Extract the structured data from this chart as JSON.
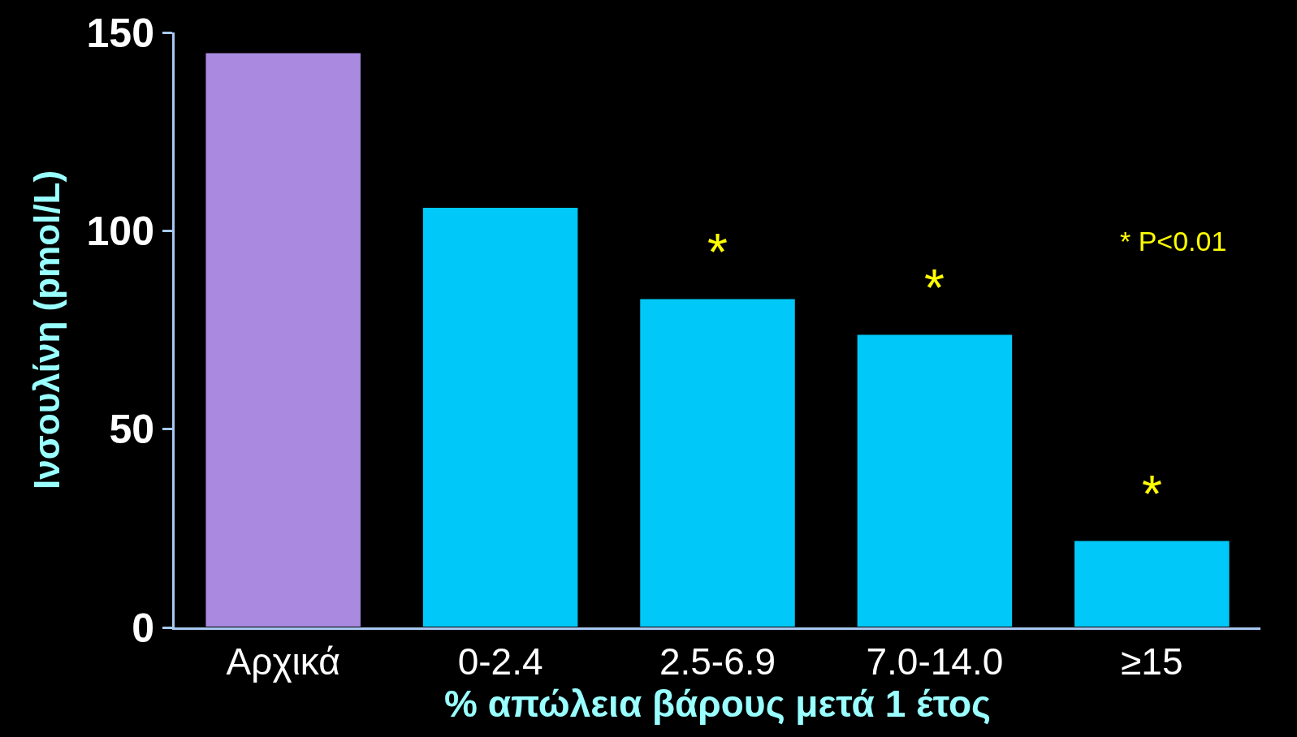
{
  "chart_data": {
    "type": "bar",
    "xlabel": "% απώλεια βάρους μετά 1 έτος",
    "ylabel": "Ινσουλίνη (pmol/L)",
    "categories": [
      "Αρχικά",
      "0-2.4",
      "2.5-6.9",
      "7.0-14.0",
      "≥15"
    ],
    "values": [
      145,
      106,
      83,
      74,
      22
    ],
    "colors": [
      "#a98ae0",
      "#00c8f8",
      "#00c8f8",
      "#00c8f8",
      "#00c8f8"
    ],
    "ylim": [
      0,
      150
    ],
    "yticks": [
      0,
      50,
      100,
      150
    ],
    "grid": false,
    "legend": false,
    "annotations": [
      {
        "text": "*",
        "x": "2.5-6.9",
        "y": 83
      },
      {
        "text": "*",
        "x": "7.0-14.0",
        "y": 74
      },
      {
        "text": "*",
        "x": "≥15",
        "y": 22
      },
      "* P<0.01"
    ]
  }
}
